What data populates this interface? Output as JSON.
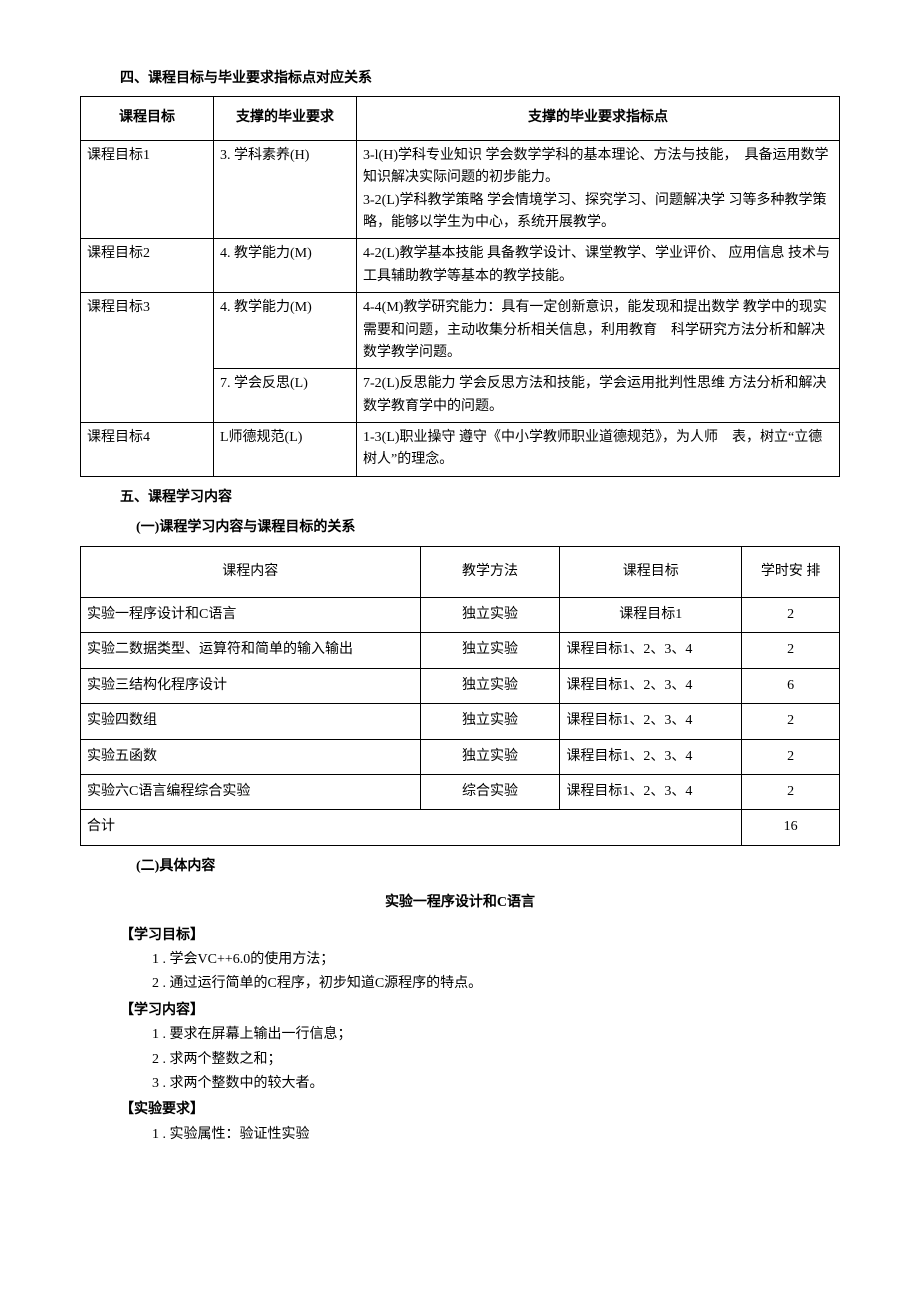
{
  "section4_title": "四、课程目标与毕业要求指标点对应关系",
  "table1": {
    "headers": [
      "课程目标",
      "支撑的毕业要求",
      "支撑的毕业要求指标点"
    ],
    "rows": [
      {
        "goal": "课程目标1",
        "reqs": [
          {
            "req": "3. 学科素养(H)",
            "point": "3-l(H)学科专业知识 学会数学学科的基本理论、方法与技能，　具备运用数学知识解决实际问题的初步能力。\n3-2(L)学科教学策略 学会情境学习、探究学习、问题解决学 习等多种教学策略，能够以学生为中心，系统开展教学。"
          }
        ]
      },
      {
        "goal": "课程目标2",
        "reqs": [
          {
            "req": "4. 教学能力(M)",
            "point": "4-2(L)教学基本技能 具备教学设计、课堂教学、学业评价、 应用信息 技术与工具辅助教学等基本的教学技能。"
          }
        ]
      },
      {
        "goal": "课程目标3",
        "reqs": [
          {
            "req": "4. 教学能力(M)",
            "point": "4-4(M)教学研究能力：具有一定创新意识，能发现和提出数学 教学中的现实需要和问题，主动收集分析相关信息，利用教育　科学研究方法分析和解决数学教学问题。"
          },
          {
            "req": "7. 学会反思(L)",
            "point": "7-2(L)反思能力 学会反思方法和技能，学会运用批判性思维 方法分析和解决数学教育学中的问题。"
          }
        ]
      },
      {
        "goal": "课程目标4",
        "reqs": [
          {
            "req": "L师德规范(L)",
            "point": "1-3(L)职业操守 遵守《中小学教师职业道德规范》，为人师　表，树立“立德树人”的理念。"
          }
        ]
      }
    ]
  },
  "section5_title": "五、课程学习内容",
  "section5_sub1": "(一)课程学习内容与课程目标的关系",
  "table2": {
    "headers": [
      "课程内容",
      "教学方法",
      "课程目标",
      "学时安 排"
    ],
    "rows": [
      {
        "content": "实验一程序设计和C语言",
        "method": "独立实验",
        "goal": "课程目标1",
        "goal_align": "center",
        "hours": "2"
      },
      {
        "content": "实验二数据类型、运算符和简单的输入输出",
        "method": "独立实验",
        "goal": "课程目标1、2、3、4",
        "goal_align": "left",
        "hours": "2"
      },
      {
        "content": "实验三结构化程序设计",
        "method": "独立实验",
        "goal": "课程目标1、2、3、4",
        "goal_align": "left",
        "hours": "6"
      },
      {
        "content": "实验四数组",
        "method": "独立实验",
        "goal": "课程目标1、2、3、4",
        "goal_align": "left",
        "hours": "2"
      },
      {
        "content": "实验五函数",
        "method": "独立实验",
        "goal": "课程目标1、2、3、4",
        "goal_align": "left",
        "hours": "2"
      },
      {
        "content": "实验六C语言编程综合实验",
        "method": "综合实验",
        "goal": "课程目标1、2、3、4",
        "goal_align": "left",
        "hours": "2"
      }
    ],
    "total_label": "合计",
    "total_hours": "16"
  },
  "section5_sub2": "(二)具体内容",
  "exp1_title": "实验一程序设计和C语言",
  "h_obj": "【学习目标】",
  "obj_items": [
    "1 . 学会VC++6.0的使用方法；",
    "2 . 通过运行简单的C程序，初步知道C源程序的特点。"
  ],
  "h_content": "【学习内容】",
  "content_items": [
    "1 . 要求在屏幕上输出一行信息；",
    "2 . 求两个整数之和；",
    "3 . 求两个整数中的较大者。"
  ],
  "h_req": "【实验要求】",
  "req_items": [
    "1 . 实验属性：验证性实验"
  ]
}
